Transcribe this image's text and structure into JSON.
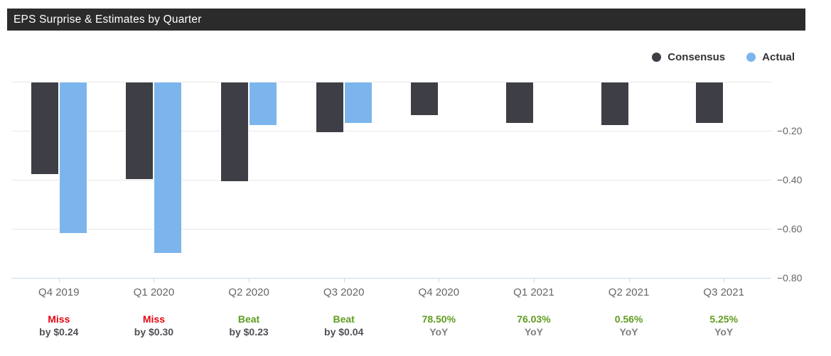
{
  "header": {
    "title": "EPS Surprise & Estimates by Quarter"
  },
  "legend": {
    "items": [
      {
        "label": "Consensus",
        "color": "#3e3e46"
      },
      {
        "label": "Actual",
        "color": "#7cb5ec"
      }
    ]
  },
  "colors": {
    "consensus_bar": "#3e3e46",
    "actual_bar": "#7cb5ec",
    "gridline": "#e7e7e7",
    "axis_line": "#ccd6eb",
    "axis_label": "#666666",
    "miss_red": "#e40613",
    "beat_green": "#5f9c1f",
    "detail_gray_dark": "#4f5055",
    "detail_gray_mid": "#808080",
    "title_bar_bg": "#2b2b2b"
  },
  "chart_data": {
    "type": "bar",
    "title": "EPS Surprise & Estimates by Quarter",
    "xlabel": "",
    "ylabel": "",
    "grid": "on",
    "legend_position": "top-right",
    "ylim": [
      -0.8,
      0.0
    ],
    "yticks": [
      {
        "value": 0.0,
        "label": ""
      },
      {
        "value": -0.2,
        "label": "−0.20"
      },
      {
        "value": -0.4,
        "label": "−0.40"
      },
      {
        "value": -0.6,
        "label": "−0.60"
      },
      {
        "value": -0.8,
        "label": "−0.80"
      }
    ],
    "categories": [
      "Q4 2019",
      "Q1 2020",
      "Q2 2020",
      "Q3 2020",
      "Q4 2020",
      "Q1 2021",
      "Q2 2021",
      "Q3 2021"
    ],
    "series": [
      {
        "name": "Consensus",
        "color": "#3e3e46",
        "values": [
          -0.38,
          -0.4,
          -0.41,
          -0.21,
          -0.14,
          -0.17,
          -0.18,
          -0.17
        ]
      },
      {
        "name": "Actual",
        "color": "#7cb5ec",
        "values": [
          -0.62,
          -0.7,
          -0.18,
          -0.17,
          null,
          null,
          null,
          null
        ]
      }
    ],
    "annotations": [
      {
        "line1": "Miss",
        "line1_color": "#e40613",
        "line2": "by $0.24",
        "line2_color": "#4f5055"
      },
      {
        "line1": "Miss",
        "line1_color": "#e40613",
        "line2": "by $0.30",
        "line2_color": "#4f5055"
      },
      {
        "line1": "Beat",
        "line1_color": "#5f9c1f",
        "line2": "by $0.23",
        "line2_color": "#4f5055"
      },
      {
        "line1": "Beat",
        "line1_color": "#5f9c1f",
        "line2": "by $0.04",
        "line2_color": "#4f5055"
      },
      {
        "line1": "78.50%",
        "line1_color": "#5f9c1f",
        "line2": "YoY",
        "line2_color": "#808080"
      },
      {
        "line1": "76.03%",
        "line1_color": "#5f9c1f",
        "line2": "YoY",
        "line2_color": "#808080"
      },
      {
        "line1": "0.56%",
        "line1_color": "#5f9c1f",
        "line2": "YoY",
        "line2_color": "#808080"
      },
      {
        "line1": "5.25%",
        "line1_color": "#5f9c1f",
        "line2": "YoY",
        "line2_color": "#808080"
      }
    ]
  }
}
